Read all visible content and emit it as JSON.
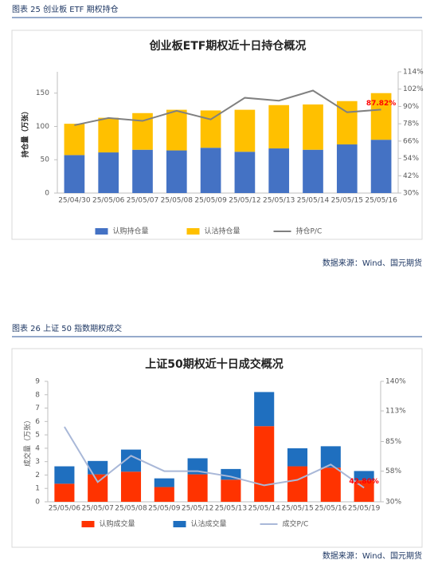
{
  "chart_data": [
    {
      "type": "bar",
      "stacked": true,
      "caption": "图表 25 创业板 ETF 期权持仓",
      "title": "创业板ETF期权近十日持仓概况",
      "ylabel": "持仓量（万张）",
      "categories": [
        "25/04/30",
        "25/05/06",
        "25/05/07",
        "25/05/08",
        "25/05/09",
        "25/05/12",
        "25/05/13",
        "25/05/14",
        "25/05/15",
        "25/05/16"
      ],
      "series": [
        {
          "name": "认购持仓量",
          "color": "#4472c4",
          "type": "bar",
          "values": [
            57,
            61,
            65,
            64,
            68,
            62,
            67,
            65,
            73,
            80
          ]
        },
        {
          "name": "认沽持仓量",
          "color": "#ffc000",
          "type": "bar",
          "values": [
            47,
            52,
            55,
            61,
            56,
            63,
            65,
            68,
            65,
            70
          ]
        },
        {
          "name": "持仓P/C",
          "color": "#808080",
          "type": "line",
          "axis": "y2",
          "values": [
            77,
            82,
            80,
            87,
            81,
            96,
            94,
            101,
            86,
            87.82
          ],
          "value_labels": [
            null,
            null,
            null,
            null,
            null,
            null,
            null,
            null,
            null,
            "87.82%"
          ]
        }
      ],
      "ylim": [
        0,
        182
      ],
      "yticks": [
        0,
        50,
        100,
        150
      ],
      "y2lim": [
        30,
        114
      ],
      "y2ticks": [
        {
          "value": 30,
          "label": "30%"
        },
        {
          "value": 42,
          "label": "42%"
        },
        {
          "value": 54,
          "label": "54%"
        },
        {
          "value": 66,
          "label": "66%"
        },
        {
          "value": 78,
          "label": "78%"
        },
        {
          "value": 90,
          "label": "90%"
        },
        {
          "value": 102,
          "label": "102%"
        },
        {
          "value": 114,
          "label": "114%"
        }
      ],
      "label_color": "#ff0000",
      "source": "数据来源：Wind、国元期货"
    },
    {
      "type": "bar",
      "stacked": true,
      "caption": "图表 26 上证 50 指数期权成交",
      "title": "上证50期权近十日成交概况",
      "ylabel": "成交量（万张）",
      "categories": [
        "25/05/06",
        "25/05/07",
        "25/05/08",
        "25/05/09",
        "25/05/12",
        "25/05/13",
        "25/05/14",
        "25/05/15",
        "25/05/16",
        "25/05/19"
      ],
      "series": [
        {
          "name": "认购成交量",
          "color": "#ff3300",
          "type": "bar",
          "values": [
            1.35,
            2.05,
            2.25,
            1.1,
            2.05,
            1.65,
            5.65,
            2.65,
            2.55,
            1.6
          ]
        },
        {
          "name": "认沽成交量",
          "color": "#1f6fbf",
          "type": "bar",
          "values": [
            1.3,
            1.0,
            1.65,
            0.65,
            1.2,
            0.8,
            2.55,
            1.35,
            1.6,
            0.7
          ]
        },
        {
          "name": "成交P/C",
          "color": "#a9b8d8",
          "type": "line",
          "axis": "y2",
          "values": [
            98.5,
            48,
            72,
            58,
            58,
            53,
            45,
            50,
            64,
            42.8
          ],
          "value_labels": [
            null,
            null,
            null,
            null,
            null,
            null,
            null,
            null,
            null,
            "42.80%"
          ]
        }
      ],
      "ylim": [
        0,
        9
      ],
      "yticks": [
        0,
        1,
        2,
        3,
        4,
        5,
        6,
        7,
        8,
        9
      ],
      "y2lim": [
        30,
        140
      ],
      "y2ticks": [
        {
          "value": 30,
          "label": "30%"
        },
        {
          "value": 58,
          "label": "58%"
        },
        {
          "value": 85,
          "label": "85%"
        },
        {
          "value": 113,
          "label": "113%"
        },
        {
          "value": 140,
          "label": "140%"
        }
      ],
      "label_color": "#ff0000",
      "source": "数据来源：Wind、国元期货"
    }
  ]
}
